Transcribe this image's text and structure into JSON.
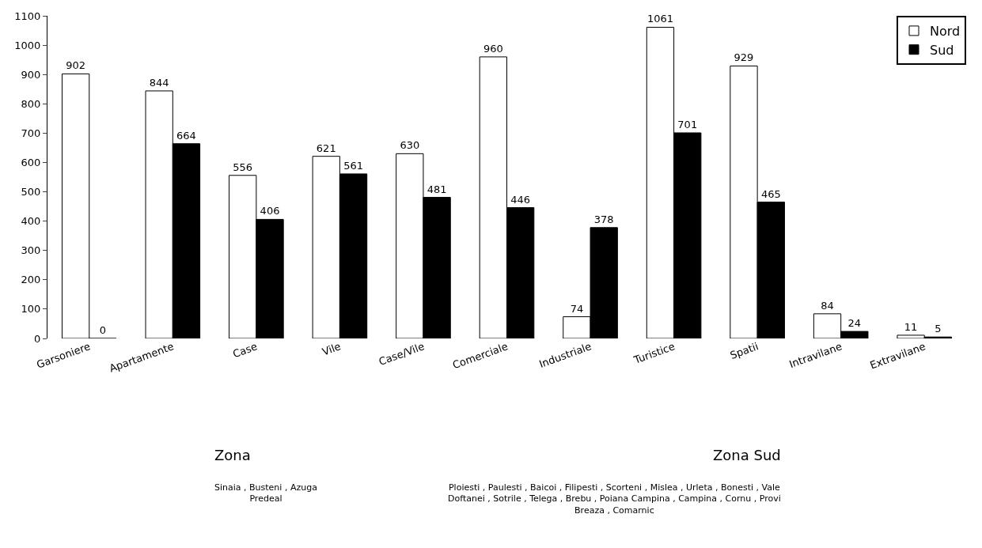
{
  "chart_data": {
    "type": "bar",
    "categories": [
      "Garsoniere",
      "Apartamente",
      "Case",
      "Vile",
      "Case/Vile",
      "Comerciale",
      "Industriale",
      "Turistice",
      "Spatii",
      "Intravilane",
      "Extravilane"
    ],
    "series": [
      {
        "name": "Nord",
        "color": "#ffffff",
        "values": [
          902,
          844,
          556,
          621,
          630,
          960,
          74,
          1061,
          929,
          84,
          11
        ]
      },
      {
        "name": "Sud",
        "color": "#000000",
        "values": [
          0,
          664,
          406,
          561,
          481,
          446,
          378,
          701,
          465,
          24,
          5
        ]
      }
    ],
    "ylim": [
      0,
      1100
    ],
    "yticks": [
      0,
      100,
      200,
      300,
      400,
      500,
      600,
      700,
      800,
      900,
      1000,
      1100
    ],
    "data_labels": true,
    "legend": "top right",
    "annotations": [
      "Zona",
      "Zona Sud",
      "Sinaia , Busteni , Azuga\nPredeal",
      "Ploiesti , Paulesti , Baicoi , Filipesti , Scorteni , Mislea , Urleta , Bonesti , Vale\nDoftanei , Sotrile , Telega , Brebu , Poiana Campina , Campina , Cornu , Provi\nBreaza , Comarnic"
    ]
  }
}
